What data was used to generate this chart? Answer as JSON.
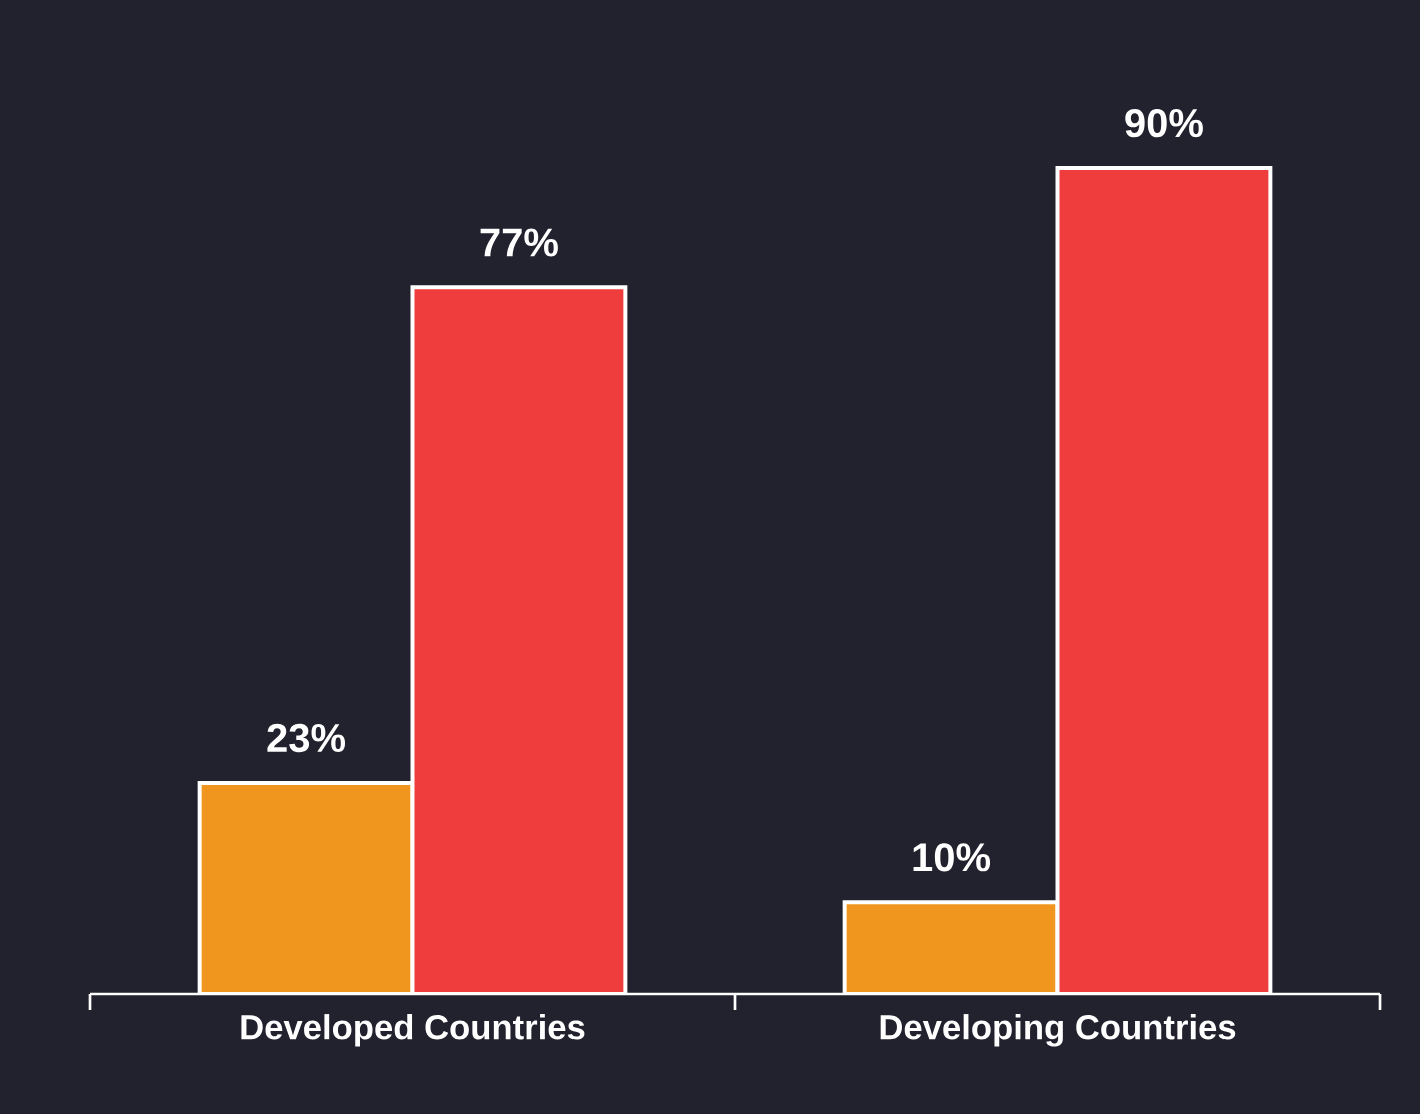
{
  "chart_data": {
    "type": "bar",
    "categories": [
      "Developed Countries",
      "Developing Countries"
    ],
    "series": [
      {
        "color": "#f0961f",
        "values": [
          23,
          10
        ],
        "value_labels": [
          "23%",
          "10%"
        ]
      },
      {
        "color": "#ef3c3c",
        "values": [
          77,
          90
        ],
        "value_labels": [
          "77%",
          "90%"
        ]
      }
    ]
  }
}
